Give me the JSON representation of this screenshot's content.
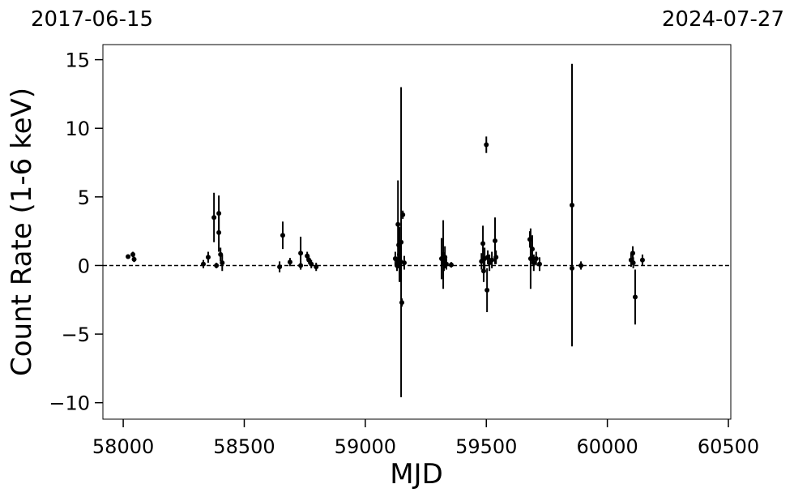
{
  "chart_data": {
    "type": "scatter",
    "top_left_label": "2017-06-15",
    "top_right_label": "2024-07-27",
    "xlabel": "MJD",
    "ylabel": "Count Rate (1-6 keV)",
    "color": "#000000",
    "reference_line": 0,
    "xlim": [
      57916,
      60510
    ],
    "ylim": [
      -11.2,
      16.1
    ],
    "xticks": [
      58000,
      58500,
      59000,
      59500,
      60000,
      60500
    ],
    "yticks": [
      {
        "value": -10,
        "label": "−10"
      },
      {
        "value": -5,
        "label": "−5"
      },
      0,
      5,
      10,
      15
    ],
    "x": [
      58020,
      58040,
      58045,
      58331,
      58351,
      58375,
      58385,
      58395,
      58395,
      58402,
      58409,
      58646,
      58659,
      58689,
      58733,
      58733,
      58760,
      58767,
      58777,
      58797,
      59124,
      59131,
      59135,
      59138,
      59141,
      59145,
      59148,
      59151,
      59155,
      59161,
      59315,
      59322,
      59325,
      59329,
      59335,
      59355,
      59480,
      59486,
      59489,
      59493,
      59500,
      59503,
      59506,
      59513,
      59523,
      59536,
      59540,
      59680,
      59683,
      59690,
      59696,
      59706,
      59720,
      59854,
      59854,
      59891,
      60098,
      60105,
      60107,
      60115,
      60145
    ],
    "values": [
      0.65,
      0.8,
      0.45,
      0.1,
      0.6,
      3.5,
      0.0,
      3.8,
      2.4,
      0.8,
      0.2,
      -0.1,
      2.2,
      0.25,
      0.9,
      0.0,
      0.7,
      0.4,
      0.1,
      -0.1,
      0.5,
      0.0,
      3.0,
      1.5,
      0.8,
      0.3,
      1.7,
      -2.7,
      3.7,
      0.2,
      0.5,
      0.8,
      0.2,
      0.6,
      0.1,
      0.05,
      0.3,
      1.6,
      -0.4,
      0.5,
      8.8,
      -1.8,
      0.6,
      0.2,
      0.4,
      1.8,
      0.6,
      1.9,
      0.5,
      1.2,
      0.2,
      0.5,
      0.1,
      4.4,
      -0.2,
      0.0,
      0.4,
      0.9,
      0.2,
      -2.3,
      0.4
    ],
    "errors": [
      0.1,
      0.2,
      0.2,
      0.3,
      0.4,
      1.8,
      0.2,
      1.3,
      1.4,
      0.5,
      0.6,
      0.4,
      1.0,
      0.3,
      1.2,
      0.3,
      0.3,
      0.3,
      0.3,
      0.3,
      0.5,
      0.4,
      3.2,
      1.5,
      2.0,
      1.5,
      11.3,
      0.3,
      0.3,
      0.5,
      1.5,
      2.5,
      0.6,
      0.8,
      0.4,
      0.2,
      0.6,
      1.3,
      0.8,
      0.8,
      0.6,
      1.6,
      0.5,
      0.6,
      0.6,
      1.7,
      0.5,
      0.6,
      2.2,
      1.0,
      0.6,
      0.5,
      0.5,
      10.3,
      0.2,
      0.3,
      0.5,
      0.5,
      0.4,
      2.0,
      0.4
    ]
  }
}
